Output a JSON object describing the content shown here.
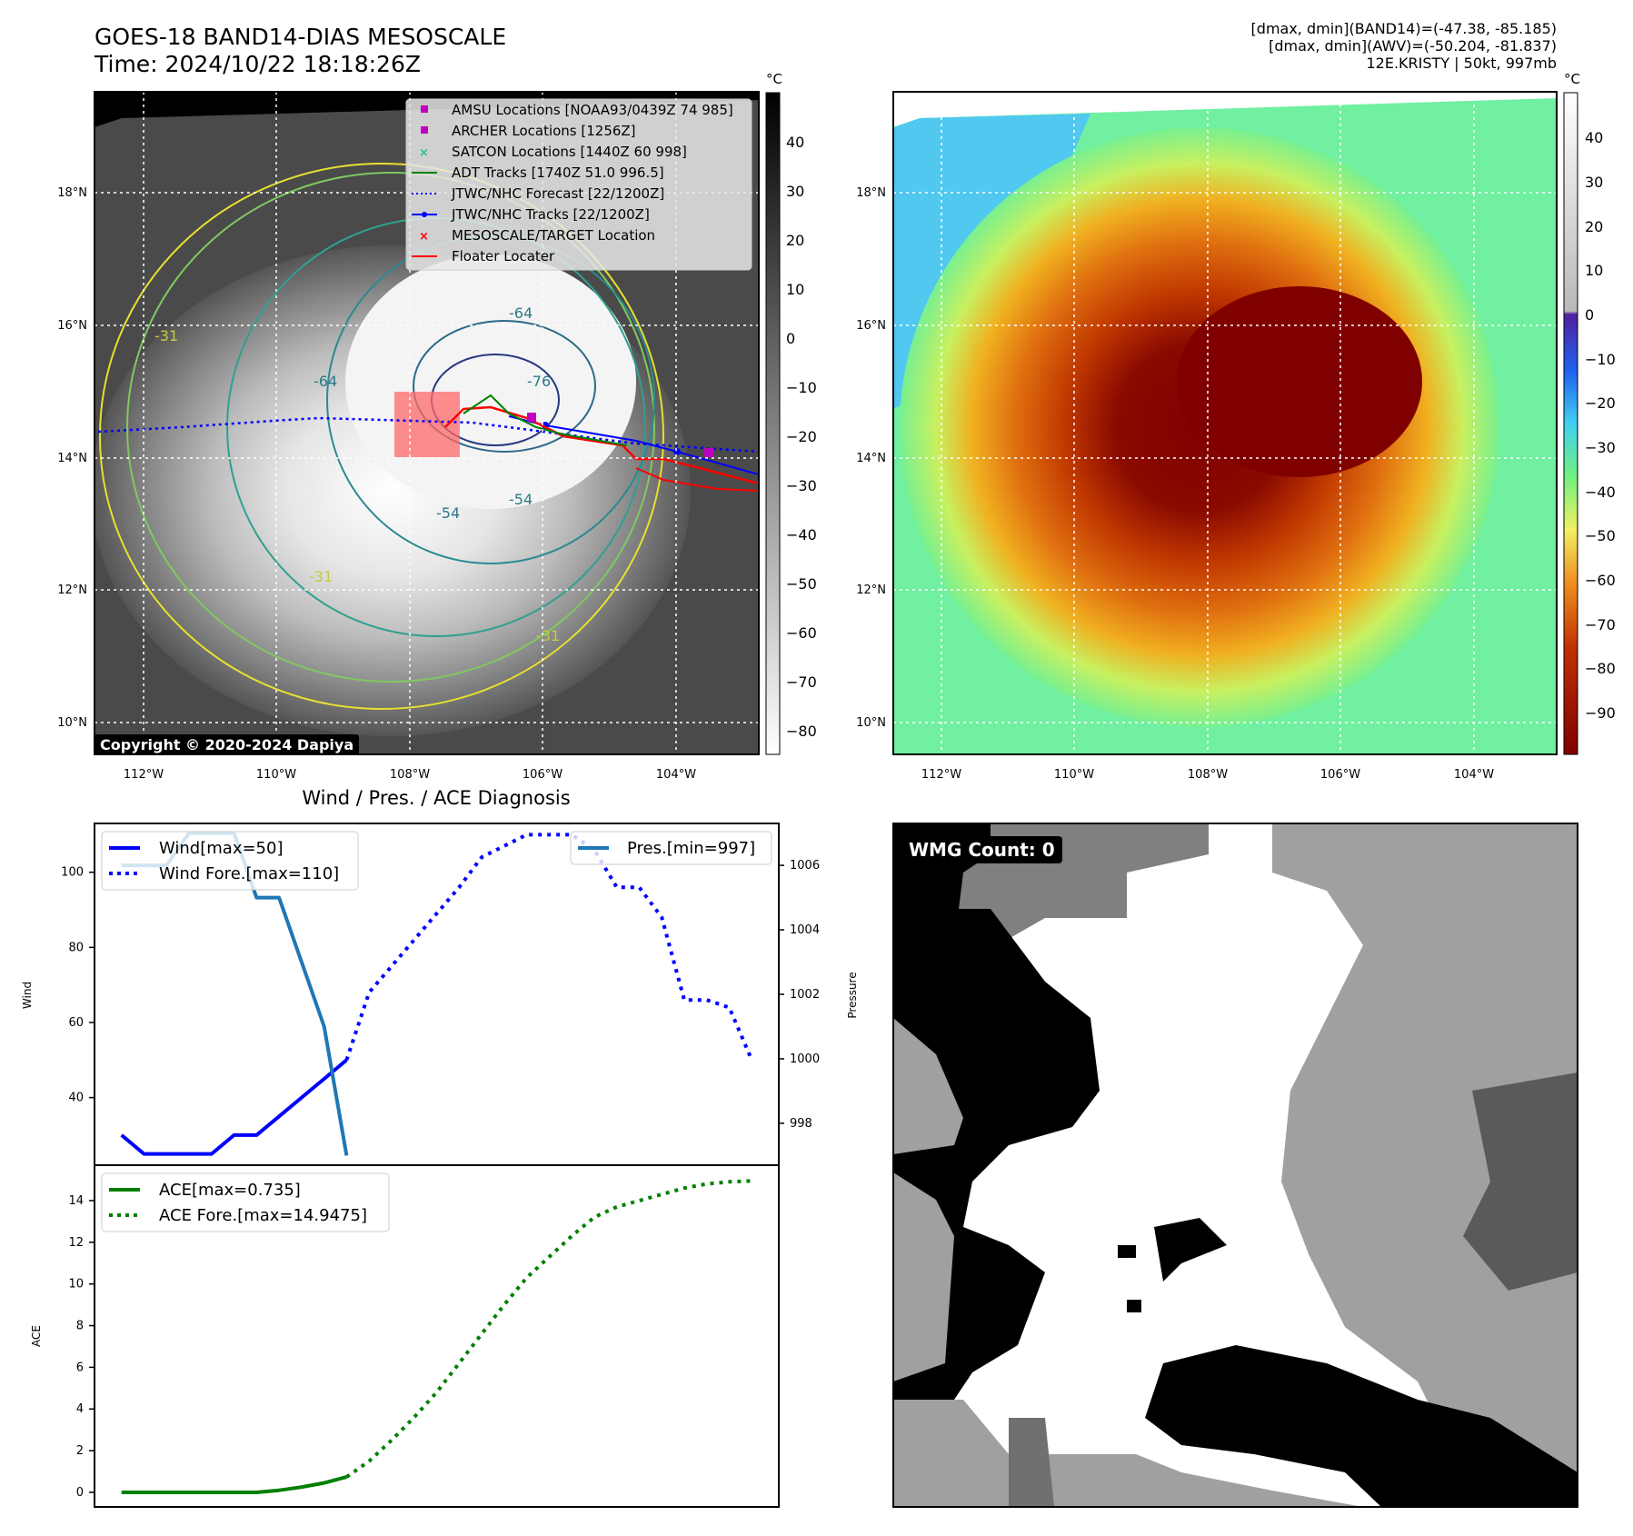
{
  "header": {
    "title_line1": "GOES-18 BAND14-DIAS MESOSCALE",
    "title_line2": "Time: 2024/10/22 18:18:26Z",
    "meta_line1": "[dmax, dmin](BAND14)=(-47.38, -85.185)",
    "meta_line2": "[dmax, dmin](AWV)=(-50.204, -81.837)",
    "meta_line3": "12E.KRISTY | 50kt, 997mb"
  },
  "maps": {
    "lon_labels": [
      "112°W",
      "110°W",
      "108°W",
      "106°W",
      "104°W"
    ],
    "lat_labels": [
      "18°N",
      "16°N",
      "14°N",
      "12°N",
      "10°N"
    ],
    "unit_label": "°C",
    "ir_colorbar_ticks": [
      "40",
      "30",
      "20",
      "10",
      "0",
      "−10",
      "−20",
      "−30",
      "−40",
      "−50",
      "−60",
      "−70",
      "−80"
    ],
    "enh_colorbar_ticks": [
      "40",
      "30",
      "20",
      "10",
      "0",
      "−10",
      "−20",
      "−30",
      "−40",
      "−50",
      "−60",
      "−70",
      "−80",
      "−90"
    ],
    "copyright": "Copyright © 2020-2024 Dapiya",
    "contour_labels": [
      "-64",
      "-64",
      "-76",
      "-54",
      "-54",
      "-31",
      "-31",
      "-31"
    ],
    "legend": [
      {
        "label": "AMSU Locations [NOAA93/0439Z 74 985]",
        "color": "#c000c0",
        "marker": "square"
      },
      {
        "label": "ARCHER Locations [1256Z]",
        "color": "#c000c0",
        "marker": "square"
      },
      {
        "label": "SATCON Locations [1440Z 60 998]",
        "color": "#20c0a0",
        "marker": "x"
      },
      {
        "label": "ADT Tracks [1740Z 51.0 996.5]",
        "color": "#008000",
        "marker": "line"
      },
      {
        "label": "JTWC/NHC Forecast [22/1200Z]",
        "color": "#0000ff",
        "marker": "dotted"
      },
      {
        "label": "JTWC/NHC Tracks [22/1200Z]",
        "color": "#0000ff",
        "marker": "dotline"
      },
      {
        "label": "MESOSCALE/TARGET Location",
        "color": "#ff0000",
        "marker": "x"
      },
      {
        "label": "Floater Locater",
        "color": "#ff0000",
        "marker": "line"
      }
    ]
  },
  "diag": {
    "title": "Wind / Pres. / ACE Diagnosis",
    "wmg_label": "WMG Count: 0"
  },
  "colors": {
    "wind": "#0000ff",
    "pressure": "#1f77b4",
    "ace": "#008000",
    "track_red": "#ff0000",
    "track_green": "#008000"
  },
  "chart_data": [
    {
      "type": "line",
      "title": "Wind / Pres. / ACE Diagnosis",
      "ylabel": "Wind",
      "ylim": [
        22,
        113
      ],
      "yticks": [
        40,
        60,
        80,
        100
      ],
      "series": [
        {
          "name": "Wind[max=50]",
          "style": "solid",
          "x": [
            0,
            1,
            2,
            3,
            4,
            5,
            6,
            7,
            8,
            9,
            10
          ],
          "values": [
            30,
            25,
            25,
            25,
            25,
            30,
            30,
            35,
            40,
            45,
            50
          ]
        },
        {
          "name": "Wind Fore.[max=110]",
          "style": "dotted",
          "x": [
            10,
            11,
            12,
            13,
            14,
            15,
            16,
            17,
            18,
            19,
            20,
            21,
            22,
            23,
            24,
            25,
            26,
            27,
            28
          ],
          "values": [
            50,
            68,
            75,
            82,
            89,
            96,
            104,
            107,
            110,
            110,
            110,
            106,
            96,
            96,
            88,
            66,
            66,
            64,
            50
          ]
        }
      ]
    },
    {
      "type": "line",
      "ylabel": "Pressure",
      "ylim": [
        996.7,
        1007.3
      ],
      "yticks": [
        998,
        1000,
        1002,
        1004,
        1006
      ],
      "series": [
        {
          "name": "Pres.[min=997]",
          "style": "solid",
          "x": [
            0,
            1,
            2,
            3,
            4,
            5,
            6,
            7,
            8,
            9,
            10
          ],
          "values": [
            1006,
            1006,
            1006,
            1007,
            1007,
            1007,
            1005,
            1005,
            1003,
            1001,
            997
          ]
        }
      ]
    },
    {
      "type": "line",
      "ylabel": "ACE",
      "ylim": [
        -0.7,
        15.7
      ],
      "yticks": [
        0,
        2,
        4,
        6,
        8,
        10,
        12,
        14
      ],
      "series": [
        {
          "name": "ACE[max=0.735]",
          "style": "solid",
          "x": [
            0,
            1,
            2,
            3,
            4,
            5,
            6,
            7,
            8,
            9,
            10
          ],
          "values": [
            0,
            0,
            0,
            0,
            0,
            0,
            0,
            0.1,
            0.25,
            0.45,
            0.735
          ]
        },
        {
          "name": "ACE Fore.[max=14.9475]",
          "style": "dotted",
          "x": [
            10,
            11,
            12,
            13,
            14,
            15,
            16,
            17,
            18,
            19,
            20,
            21,
            22,
            23,
            24,
            25,
            26,
            27,
            28
          ],
          "values": [
            0.735,
            1.5,
            2.5,
            3.6,
            4.8,
            6.2,
            7.6,
            9.0,
            10.3,
            11.3,
            12.3,
            13.2,
            13.7,
            14.0,
            14.3,
            14.6,
            14.8,
            14.9,
            14.9475
          ]
        }
      ]
    }
  ]
}
